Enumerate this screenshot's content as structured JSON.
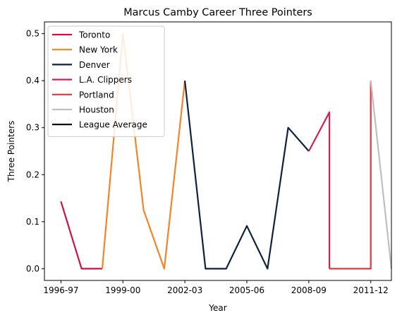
{
  "chart_data": {
    "type": "line",
    "title": "Marcus Camby Career Three Pointers",
    "xlabel": "Year",
    "ylabel": "Three Pointers",
    "x_ticks": [
      {
        "value": 0,
        "label": "1996-97"
      },
      {
        "value": 3,
        "label": "1999-00"
      },
      {
        "value": 6,
        "label": "2002-03"
      },
      {
        "value": 9,
        "label": "2005-06"
      },
      {
        "value": 12,
        "label": "2008-09"
      },
      {
        "value": 15,
        "label": "2011-12"
      }
    ],
    "xlim": [
      -0.8,
      16.0
    ],
    "ylim": [
      -0.025,
      0.525
    ],
    "y_ticks": [
      "0.0",
      "0.1",
      "0.2",
      "0.3",
      "0.4",
      "0.5"
    ],
    "grid": false,
    "legend_position": "top-left",
    "series": [
      {
        "name": "Toronto",
        "color": "#ce1141",
        "points": [
          [
            0,
            0.143
          ],
          [
            1,
            0.0
          ],
          [
            2,
            0.0
          ]
        ]
      },
      {
        "name": "New York",
        "color": "#f58426",
        "points": [
          [
            2,
            0.0
          ],
          [
            3,
            0.5
          ],
          [
            4,
            0.125
          ],
          [
            5,
            0.0
          ],
          [
            6,
            0.4
          ]
        ]
      },
      {
        "name": "Denver",
        "color": "#0e2240",
        "points": [
          [
            6,
            0.4
          ],
          [
            7,
            0.0
          ],
          [
            8,
            0.0
          ],
          [
            9,
            0.091
          ],
          [
            10,
            0.0
          ],
          [
            11,
            0.3
          ],
          [
            12,
            0.25
          ]
        ]
      },
      {
        "name": "L.A. Clippers",
        "color": "#dc1e4d",
        "points": [
          [
            12,
            0.25
          ],
          [
            13,
            0.333
          ],
          [
            13,
            0.0
          ]
        ]
      },
      {
        "name": "Portland",
        "color": "#e03a3e",
        "points": [
          [
            13,
            0.0
          ],
          [
            14,
            0.0
          ],
          [
            15,
            0.0
          ],
          [
            15,
            0.4
          ]
        ]
      },
      {
        "name": "Houston",
        "color": "#bfbfbf",
        "points": [
          [
            15,
            0.4
          ],
          [
            16,
            0.0
          ]
        ]
      },
      {
        "name": "League Average",
        "color": "#000000",
        "points": []
      }
    ]
  }
}
